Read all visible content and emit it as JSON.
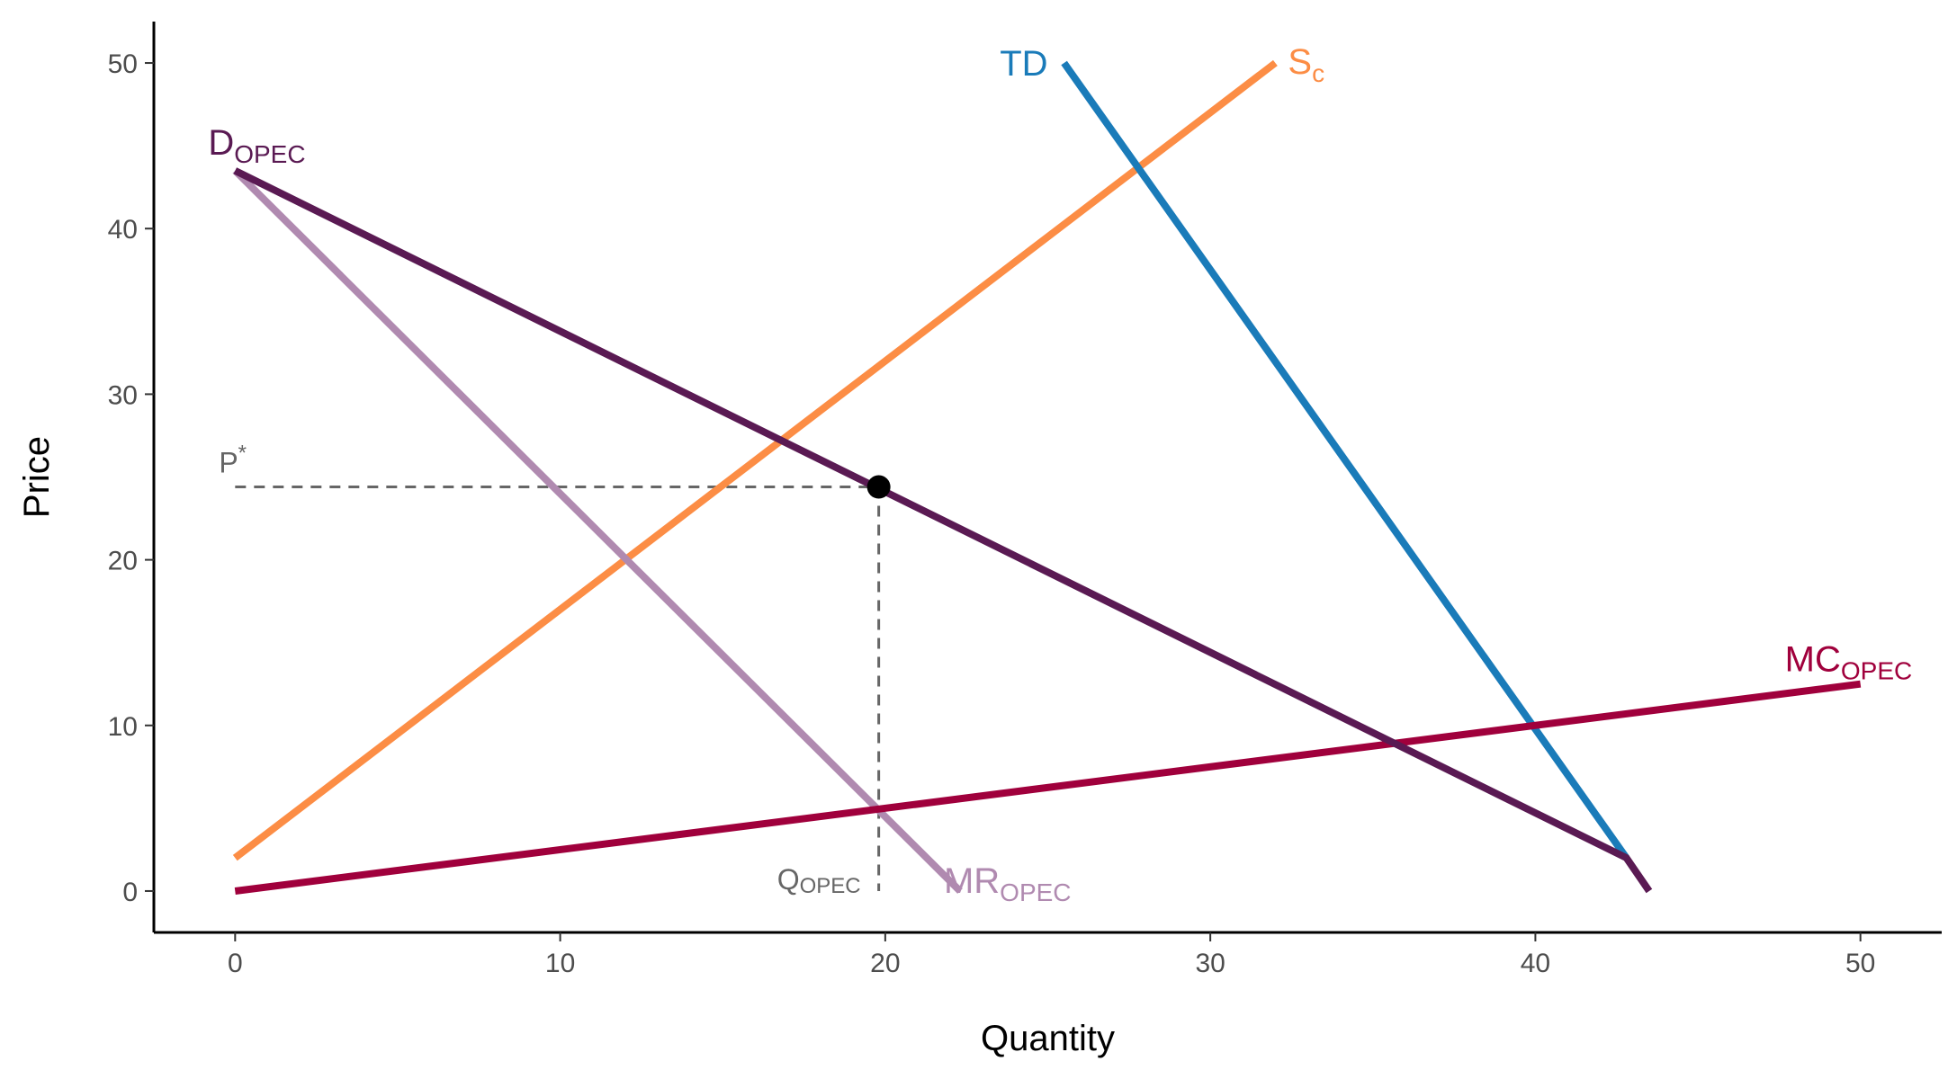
{
  "chart_data": {
    "type": "line",
    "xlabel": "Quantity",
    "ylabel": "Price",
    "xlim": [
      -2.5,
      52.5
    ],
    "ylim": [
      -2.5,
      52.5
    ],
    "x_ticks": [
      0,
      10,
      20,
      30,
      40,
      50
    ],
    "y_ticks": [
      0,
      10,
      20,
      30,
      40,
      50
    ],
    "grid": false,
    "series": [
      {
        "key": "td",
        "label": "TD",
        "label_sub": "",
        "color": "#1a7bb9",
        "points": [
          [
            25.5,
            50
          ],
          [
            42.8,
            2
          ]
        ]
      },
      {
        "key": "sc",
        "label": "S",
        "label_sub": "c",
        "color": "#fc8d45",
        "points": [
          [
            0,
            2
          ],
          [
            32,
            50
          ]
        ]
      },
      {
        "key": "dopec",
        "label": "D",
        "label_sub": "OPEC",
        "color": "#5a1a53",
        "points": [
          [
            0,
            43.5
          ],
          [
            42.8,
            2
          ],
          [
            43.5,
            0
          ]
        ]
      },
      {
        "key": "mropec",
        "label": "MR",
        "label_sub": "OPEC",
        "color": "#b08ab0",
        "points": [
          [
            0,
            43.5
          ],
          [
            22.3,
            0
          ]
        ]
      },
      {
        "key": "mcopec",
        "label": "MC",
        "label_sub": "OPEC",
        "color": "#a0003c",
        "points": [
          [
            0,
            0
          ],
          [
            50,
            12.5
          ]
        ]
      }
    ],
    "equilibrium": {
      "point": [
        19.8,
        24.4
      ],
      "p_label": "P",
      "p_label_sup": "*",
      "q_label": "Q",
      "q_label_sub": "OPEC"
    }
  }
}
